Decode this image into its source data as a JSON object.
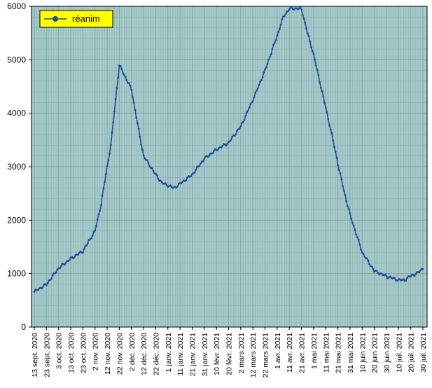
{
  "chart_data": {
    "type": "line",
    "title": "",
    "xlabel": "",
    "ylabel": "",
    "ylim": [
      0,
      6000
    ],
    "y_ticks": [
      0,
      1000,
      2000,
      3000,
      4000,
      5000,
      6000
    ],
    "grid": "on (major and minor, both axes)",
    "legend": "top-left",
    "colors": {
      "plot_background": "#a5c9c9",
      "grid_minor": "#8fb3b3",
      "grid_major": "#7fa3a3",
      "series": "#1f4e99",
      "legend_background": "#ffff00"
    },
    "x_tick_labels": [
      "13 sept. 2020",
      "23 sept. 2020",
      "3 oct. 2020",
      "13 oct. 2020",
      "23 oct. 2020",
      "2 nov. 2020",
      "12 nov. 2020",
      "22 nov. 2020",
      "2 déc. 2020",
      "12 déc. 2020",
      "22 déc. 2020",
      "1 janv. 2021",
      "11 janv. 2021",
      "21 janv. 2021",
      "31 janv. 2021",
      "10 févr. 2021",
      "20 févr. 2021",
      "2 mars 2021",
      "12 mars 2021",
      "22 mars 2021",
      "1 avr. 2021",
      "11 avr. 2021",
      "21 avr. 2021",
      "1 mai 2021",
      "11 mai 2021",
      "21 mai 2021",
      "31 mai 2021",
      "10 juin 2021",
      "20 juin 2021",
      "30 juin 2021",
      "10 juil. 2021",
      "20 juil. 2021",
      "30 juil. 2021"
    ],
    "x": [
      "13 sept. 2020",
      "23 sept. 2020",
      "3 oct. 2020",
      "13 oct. 2020",
      "23 oct. 2020",
      "2 nov. 2020",
      "7 nov. 2020",
      "12 nov. 2020",
      "15 nov. 2020",
      "22 nov. 2020",
      "2 déc. 2020",
      "7 déc. 2020",
      "12 déc. 2020",
      "22 déc. 2020",
      "27 déc. 2020",
      "1 janv. 2021",
      "6 janv. 2021",
      "11 janv. 2021",
      "21 janv. 2021",
      "31 janv. 2021",
      "10 févr. 2021",
      "20 févr. 2021",
      "2 mars 2021",
      "12 mars 2021",
      "22 mars 2021",
      "1 avr. 2021",
      "6 avr. 2021",
      "11 avr. 2021",
      "16 avr. 2021",
      "21 avr. 2021",
      "26 avr. 2021",
      "1 mai 2021",
      "6 mai 2021",
      "11 mai 2021",
      "16 mai 2021",
      "21 mai 2021",
      "26 mai 2021",
      "31 mai 2021",
      "10 juin 2021",
      "20 juin 2021",
      "30 juin 2021",
      "10 juil. 2021",
      "15 juil. 2021",
      "20 juil. 2021",
      "25 juil. 2021",
      "30 juil. 2021"
    ],
    "series": [
      {
        "name": "réanim",
        "values": [
          660,
          800,
          1100,
          1280,
          1420,
          1800,
          2300,
          3000,
          3400,
          4900,
          4450,
          3800,
          3200,
          2850,
          2700,
          2650,
          2600,
          2680,
          2850,
          3150,
          3320,
          3450,
          3750,
          4250,
          4800,
          5450,
          5800,
          5950,
          5960,
          5950,
          5500,
          5100,
          4600,
          4100,
          3600,
          3050,
          2550,
          2100,
          1400,
          1050,
          950,
          880,
          880,
          960,
          1000,
          1100
        ]
      }
    ]
  }
}
